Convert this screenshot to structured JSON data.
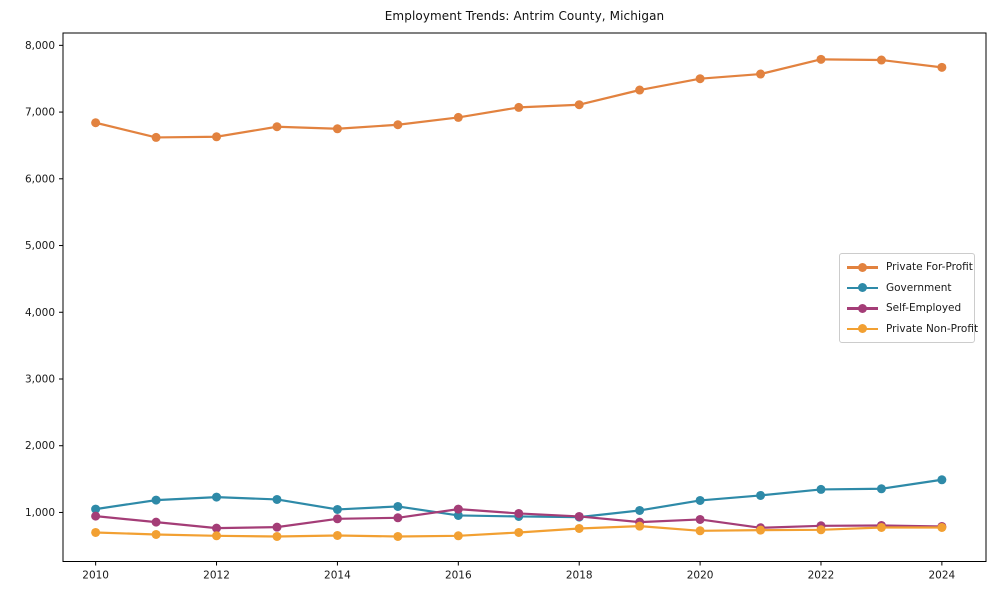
{
  "figure": {
    "background": "#ffffff",
    "axis_color": "#000000",
    "text_color": "#1a1a1a",
    "legend_border_color": "#cccccc"
  },
  "chart_data": {
    "type": "line",
    "title": "Employment Trends: Antrim County, Michigan",
    "xlabel": "",
    "ylabel": "",
    "grid": false,
    "legend_position": "center-right",
    "x": [
      2010,
      2011,
      2012,
      2013,
      2014,
      2015,
      2016,
      2017,
      2018,
      2019,
      2020,
      2021,
      2022,
      2023,
      2024
    ],
    "series": [
      {
        "name": "Private For-Profit",
        "color": "#e2823f",
        "values": [
          6840,
          6620,
          6630,
          6780,
          6750,
          6810,
          6920,
          7070,
          7110,
          7330,
          7500,
          7570,
          7790,
          7780,
          7670
        ]
      },
      {
        "name": "Government",
        "color": "#2e8aa8",
        "values": [
          1050,
          1185,
          1230,
          1195,
          1045,
          1090,
          955,
          940,
          930,
          1030,
          1180,
          1255,
          1345,
          1355,
          1490
        ]
      },
      {
        "name": "Self-Employed",
        "color": "#a43d77",
        "values": [
          945,
          855,
          765,
          780,
          905,
          920,
          1050,
          985,
          940,
          855,
          895,
          770,
          800,
          805,
          790
        ]
      },
      {
        "name": "Private Non-Profit",
        "color": "#f2a032",
        "values": [
          700,
          670,
          650,
          640,
          655,
          640,
          650,
          700,
          760,
          795,
          725,
          735,
          740,
          775,
          775
        ]
      }
    ],
    "xlim": [
      2009.46,
      2024.73
    ],
    "ylim": [
      265,
      8185
    ],
    "x_ticks": {
      "values": [
        2010,
        2012,
        2014,
        2016,
        2018,
        2020,
        2022,
        2024
      ],
      "labels": [
        "2010",
        "2012",
        "2014",
        "2016",
        "2018",
        "2020",
        "2022",
        "2024"
      ]
    },
    "y_ticks": {
      "values": [
        1000,
        2000,
        3000,
        4000,
        5000,
        6000,
        7000,
        8000
      ],
      "labels": [
        "1,000",
        "2,000",
        "3,000",
        "4,000",
        "5,000",
        "6,000",
        "7,000",
        "8,000"
      ]
    }
  }
}
